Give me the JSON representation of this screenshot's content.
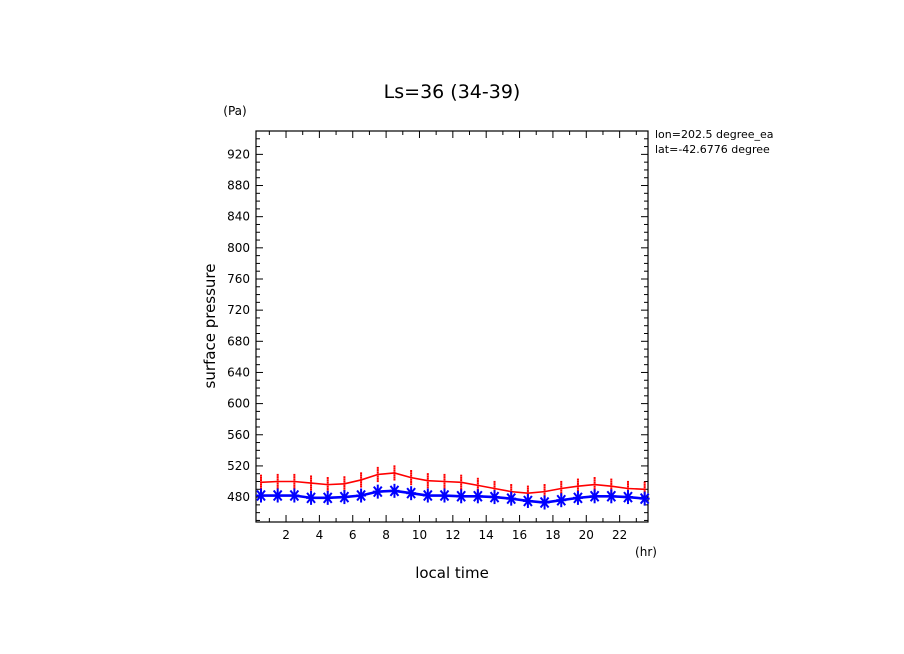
{
  "chart_data": {
    "type": "line",
    "title": "Ls=36 (34-39)",
    "xlabel": "local time",
    "ylabel": "surface pressure",
    "x_unit": "(hr)",
    "y_unit": "(Pa)",
    "annotations": [
      "lon=202.5 degree_ea",
      "lat=-42.6776 degree"
    ],
    "xlim": [
      0.2,
      23.7
    ],
    "ylim": [
      448,
      950
    ],
    "x_ticks": [
      2,
      4,
      6,
      8,
      10,
      12,
      14,
      16,
      18,
      20,
      22
    ],
    "y_ticks": [
      480,
      520,
      560,
      600,
      640,
      680,
      720,
      760,
      800,
      840,
      880,
      920
    ],
    "grid": false,
    "x": [
      0.5,
      1.5,
      2.5,
      3.5,
      4.5,
      5.5,
      6.5,
      7.5,
      8.5,
      9.5,
      10.5,
      11.5,
      12.5,
      13.5,
      14.5,
      15.5,
      16.5,
      17.5,
      18.5,
      19.5,
      20.5,
      21.5,
      22.5,
      23.5
    ],
    "series": [
      {
        "color": "#ff0000",
        "values": [
          499,
          500,
          500,
          498,
          496,
          497,
          502,
          509,
          511,
          505,
          501,
          500,
          499,
          495,
          491,
          487,
          485,
          487,
          491,
          494,
          496,
          494,
          491,
          490
        ]
      },
      {
        "color": "#0000ff",
        "values": [
          482,
          482,
          482,
          479,
          479,
          480,
          482,
          487,
          488,
          485,
          482,
          482,
          481,
          481,
          480,
          478,
          475,
          473,
          476,
          479,
          481,
          481,
          480,
          478
        ]
      }
    ]
  }
}
